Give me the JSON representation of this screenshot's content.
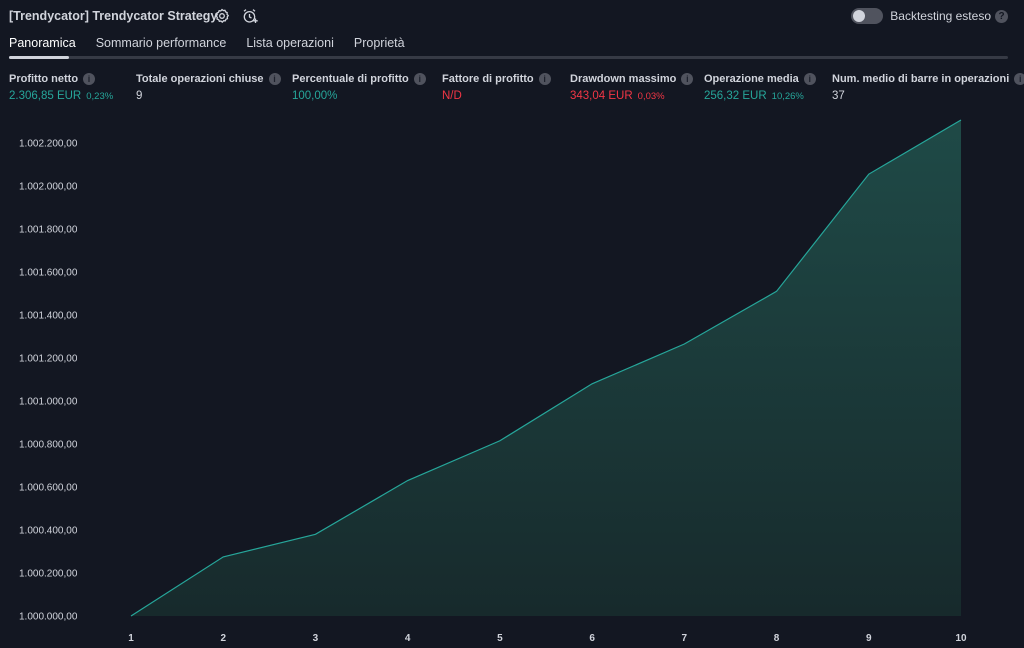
{
  "header": {
    "title": "[Trendycator] Trendycator Strategy",
    "settings_icon": "gear-icon",
    "alert_icon": "alarm-clock-plus-icon",
    "backtesting_label": "Backtesting esteso",
    "backtesting_enabled": false
  },
  "tabs": [
    {
      "label": "Panoramica",
      "active": true
    },
    {
      "label": "Sommario performance",
      "active": false
    },
    {
      "label": "Lista operazioni",
      "active": false
    },
    {
      "label": "Proprietà",
      "active": false
    }
  ],
  "metrics": [
    {
      "label": "Profitto netto",
      "value": "2.306,85 EUR",
      "sub": "0,23%",
      "color": "#26a69a"
    },
    {
      "label": "Totale operazioni chiuse",
      "value": "9",
      "sub": "",
      "color": "#d1d4dc"
    },
    {
      "label": "Percentuale di profitto",
      "value": "100,00%",
      "sub": "",
      "color": "#26a69a"
    },
    {
      "label": "Fattore di profitto",
      "value": "N/D",
      "sub": "",
      "color": "#f23645"
    },
    {
      "label": "Drawdown massimo",
      "value": "343,04 EUR",
      "sub": "0,03%",
      "color": "#f23645"
    },
    {
      "label": "Operazione media",
      "value": "256,32 EUR",
      "sub": "10,26%",
      "color": "#26a69a"
    },
    {
      "label": "Num. medio di barre in operazioni",
      "value": "37",
      "sub": "",
      "color": "#d1d4dc"
    }
  ],
  "chart_data": {
    "type": "area",
    "x": [
      1,
      2,
      3,
      4,
      5,
      6,
      7,
      8,
      9,
      10
    ],
    "series": [
      {
        "values": [
          1000000.0,
          1000275.0,
          1000380.0,
          1000630.0,
          1000815.0,
          1001080.0,
          1001265.0,
          1001510.0,
          1002055.0,
          1002306.85
        ]
      }
    ],
    "yticks": [
      1000000,
      1000200,
      1000400,
      1000600,
      1000800,
      1001000,
      1001200,
      1001400,
      1001600,
      1001800,
      1002000,
      1002200
    ],
    "ytick_labels": [
      "1.000.000,00",
      "1.000.200,00",
      "1.000.400,00",
      "1.000.600,00",
      "1.000.800,00",
      "1.001.000,00",
      "1.001.200,00",
      "1.001.400,00",
      "1.001.600,00",
      "1.001.800,00",
      "1.002.000,00",
      "1.002.200,00"
    ],
    "xtick_labels": [
      "1",
      "2",
      "3",
      "4",
      "5",
      "6",
      "7",
      "8",
      "9",
      "10"
    ],
    "ylim": [
      1000000,
      1002306.85
    ],
    "line_color": "#26a69a",
    "fill_color": "#1c3a3a",
    "grid": false,
    "legend": "none"
  }
}
